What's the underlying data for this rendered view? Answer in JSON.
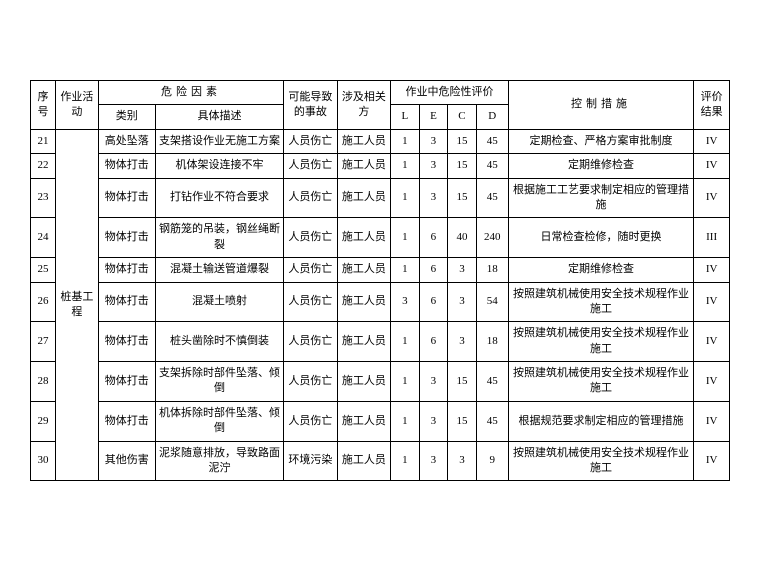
{
  "headers": {
    "seq": "序号",
    "activity": "作业活动",
    "risk_factor": "危险因素",
    "category": "类别",
    "desc": "具体描述",
    "accident": "可能导致的事故",
    "party": "涉及相关方",
    "evaluation": "作业中危险性评价",
    "L": "L",
    "E": "E",
    "C": "C",
    "D": "D",
    "measure": "控制措施",
    "result": "评价结果"
  },
  "activity_group": "桩基工程",
  "rows": [
    {
      "seq": "21",
      "category": "高处坠落",
      "desc": "支架搭设作业无施工方案",
      "accident": "人员伤亡",
      "party": "施工人员",
      "L": "1",
      "E": "3",
      "C": "15",
      "D": "45",
      "measure": "定期检查、严格方案审批制度",
      "result": "IV"
    },
    {
      "seq": "22",
      "category": "物体打击",
      "desc": "机体架设连接不牢",
      "accident": "人员伤亡",
      "party": "施工人员",
      "L": "1",
      "E": "3",
      "C": "15",
      "D": "45",
      "measure": "定期维修检查",
      "result": "IV"
    },
    {
      "seq": "23",
      "category": "物体打击",
      "desc": "打钻作业不符合要求",
      "accident": "人员伤亡",
      "party": "施工人员",
      "L": "1",
      "E": "3",
      "C": "15",
      "D": "45",
      "measure": "根据施工工艺要求制定相应的管理措施",
      "result": "IV"
    },
    {
      "seq": "24",
      "category": "物体打击",
      "desc": "钢筋笼的吊装，钢丝绳断裂",
      "accident": "人员伤亡",
      "party": "施工人员",
      "L": "1",
      "E": "6",
      "C": "40",
      "D": "240",
      "measure": "日常检查检修，随时更换",
      "result": "III"
    },
    {
      "seq": "25",
      "category": "物体打击",
      "desc": "混凝土输送管道爆裂",
      "accident": "人员伤亡",
      "party": "施工人员",
      "L": "1",
      "E": "6",
      "C": "3",
      "D": "18",
      "measure": "定期维修检查",
      "result": "IV"
    },
    {
      "seq": "26",
      "category": "物体打击",
      "desc": "混凝土喷射",
      "accident": "人员伤亡",
      "party": "施工人员",
      "L": "3",
      "E": "6",
      "C": "3",
      "D": "54",
      "measure": "按照建筑机械使用安全技术规程作业施工",
      "result": "IV"
    },
    {
      "seq": "27",
      "category": "物体打击",
      "desc": "桩头凿除时不慎倒装",
      "accident": "人员伤亡",
      "party": "施工人员",
      "L": "1",
      "E": "6",
      "C": "3",
      "D": "18",
      "measure": "按照建筑机械使用安全技术规程作业施工",
      "result": "IV"
    },
    {
      "seq": "28",
      "category": "物体打击",
      "desc": "支架拆除时部件坠落、倾倒",
      "accident": "人员伤亡",
      "party": "施工人员",
      "L": "1",
      "E": "3",
      "C": "15",
      "D": "45",
      "measure": "按照建筑机械使用安全技术规程作业施工",
      "result": "IV"
    },
    {
      "seq": "29",
      "category": "物体打击",
      "desc": "机体拆除时部件坠落、倾倒",
      "accident": "人员伤亡",
      "party": "施工人员",
      "L": "1",
      "E": "3",
      "C": "15",
      "D": "45",
      "measure": "根据规范要求制定相应的管理措施",
      "result": "IV"
    },
    {
      "seq": "30",
      "category": "其他伤害",
      "desc": "泥浆随意排放，导致路面泥泞",
      "accident": "环境污染",
      "party": "施工人员",
      "L": "1",
      "E": "3",
      "C": "3",
      "D": "9",
      "measure": "按照建筑机械使用安全技术规程作业施工",
      "result": "IV"
    }
  ],
  "style": {
    "font_family": "SimSun",
    "font_size": 11,
    "text_color": "#000000",
    "border_color": "#000000",
    "background_color": "#ffffff",
    "column_widths_pct": {
      "seq": 3.5,
      "activity": 6,
      "category": 8,
      "desc": 18,
      "accident": 7.5,
      "party": 7.5,
      "L": 4,
      "E": 4,
      "C": 4,
      "D": 4.5,
      "measure": 26,
      "result": 5
    }
  }
}
